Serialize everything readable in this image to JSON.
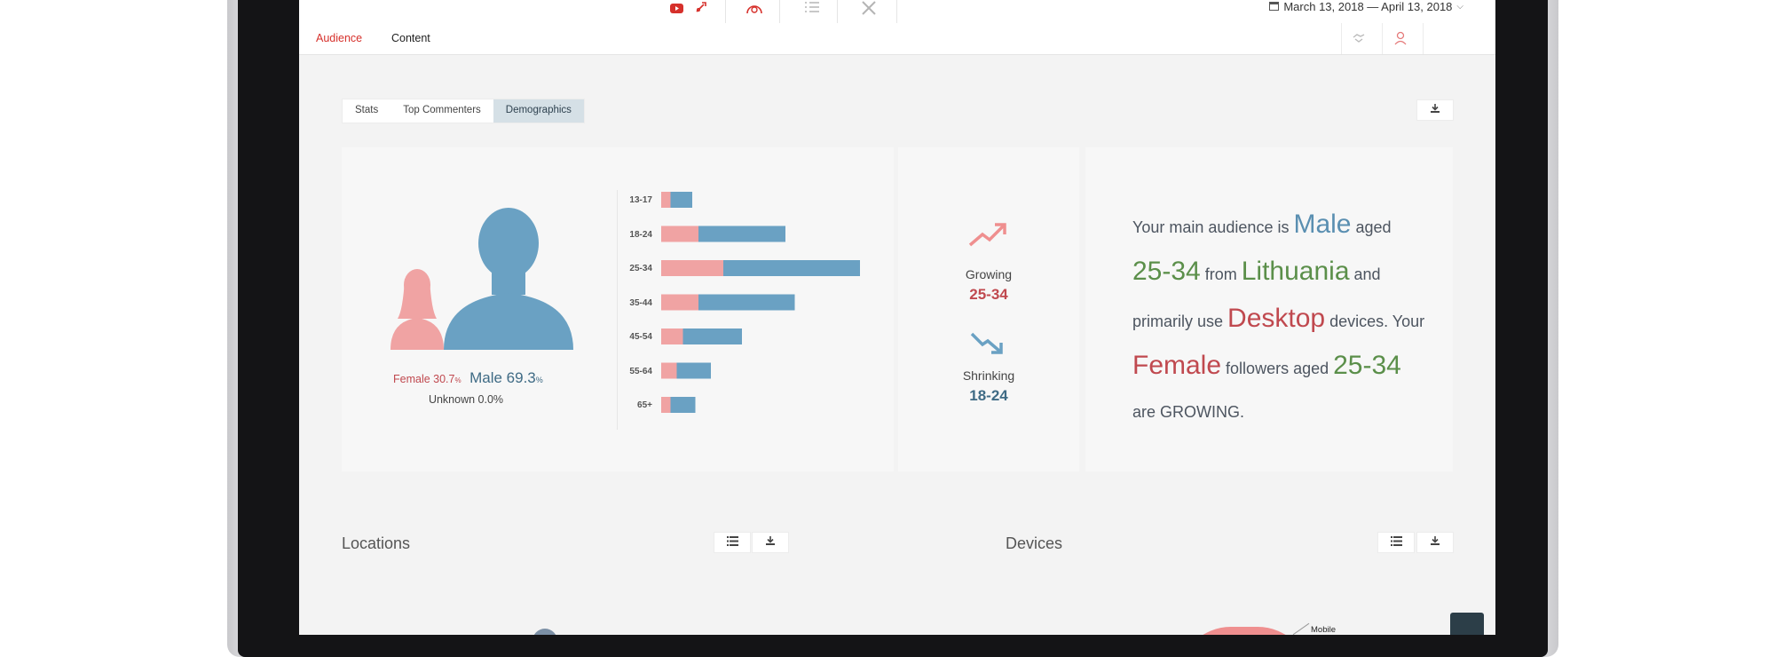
{
  "colors": {
    "accent_red": "#d6302b",
    "female": "#f0a3a3",
    "male": "#6aa1c3",
    "green": "#5b8f4a",
    "female_text": "#c0494f",
    "male_text": "#3f6b85"
  },
  "topbar": {
    "icons": [
      "youtube-icon",
      "rocket-icon",
      "gauge-icon",
      "checklist-icon",
      "tools-icon"
    ],
    "date_range": "March 13, 2018 — April 13, 2018"
  },
  "subnav": {
    "tabs": [
      {
        "label": "Audience"
      },
      {
        "label": "Content"
      }
    ],
    "right_icons": [
      "handshake-icon",
      "user-icon"
    ]
  },
  "tabs": [
    {
      "label": "Stats"
    },
    {
      "label": "Top Commenters"
    },
    {
      "label": "Demographics"
    }
  ],
  "gender": {
    "female_label": "Female 30.7",
    "female_pct": "%",
    "male_label": "Male 69.3",
    "male_pct": "%",
    "unknown": "Unknown 0.0%",
    "female_share": 30.7,
    "male_share": 69.3
  },
  "chart_data": {
    "type": "bar",
    "stacked": true,
    "orientation": "horizontal",
    "categories": [
      "13-17",
      "18-24",
      "25-34",
      "35-44",
      "45-54",
      "55-64",
      "65+"
    ],
    "series": [
      {
        "color": "#f0a3a3",
        "values": [
          1.5,
          6,
          10,
          6,
          3.5,
          2.5,
          1.5
        ]
      },
      {
        "color": "#6aa1c3",
        "values": [
          3.5,
          14,
          22,
          15.5,
          9.5,
          5.5,
          4
        ]
      }
    ]
  },
  "trends": {
    "growing_label": "Growing",
    "growing_value": "25-34",
    "shrinking_label": "Shrinking",
    "shrinking_value": "18-24"
  },
  "summary": {
    "t1": "Your main audience is ",
    "male": "Male",
    "t2": " aged ",
    "age1": "25-34",
    "t3": " from ",
    "country": "Lithuania",
    "t4": " and primarily use ",
    "device": "Desktop",
    "t5": " devices. Your ",
    "female": "Female",
    "t6": " followers aged ",
    "age2": "25-34",
    "t7": " are GROWING."
  },
  "locations": {
    "title": "Locations"
  },
  "devices": {
    "title": "Devices",
    "pie_label": "Mobile"
  }
}
